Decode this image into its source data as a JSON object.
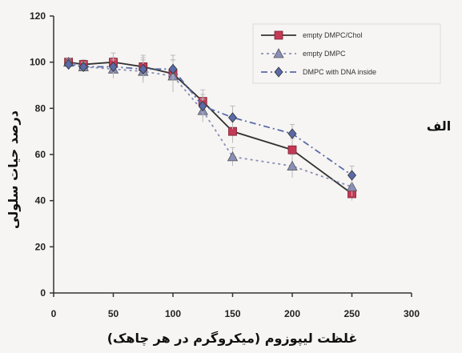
{
  "panel_label": "الف",
  "chart_data": {
    "type": "line",
    "xlabel": "غلظت لیپوزوم (میکروگرم در هر چاهک)",
    "ylabel": "درصد حیات سلولی",
    "xlim": [
      0,
      300
    ],
    "ylim": [
      0,
      120
    ],
    "xticks": [
      0,
      50,
      100,
      150,
      200,
      250,
      300
    ],
    "yticks": [
      0,
      20,
      40,
      60,
      80,
      100,
      120
    ],
    "x": [
      12.5,
      25,
      50,
      75,
      100,
      125,
      150,
      200,
      250
    ],
    "legend_position": "top-right",
    "series": [
      {
        "name": "empty DMPC/Chol",
        "color": "#c43a55",
        "marker": "square",
        "line": "solid",
        "values": [
          100,
          99,
          100,
          98,
          95,
          83,
          70,
          62,
          43
        ],
        "errors": [
          1.5,
          2,
          4,
          5,
          6,
          5,
          5,
          5,
          3
        ]
      },
      {
        "name": "empty DMPC",
        "color": "#8a8fb8",
        "marker": "triangle",
        "line": "dotted",
        "values": [
          100,
          98,
          97,
          96,
          94,
          79,
          59,
          55,
          46
        ],
        "errors": [
          1.5,
          2,
          4,
          5,
          7,
          5,
          4,
          5,
          4
        ]
      },
      {
        "name": "DMPC with DNA inside",
        "color": "#5a6aa8",
        "marker": "diamond",
        "line": "dashdot",
        "values": [
          99,
          98,
          98,
          97,
          97,
          81,
          76,
          69,
          51
        ],
        "errors": [
          1.5,
          2,
          4,
          5,
          6,
          5,
          5,
          4,
          4
        ]
      }
    ]
  }
}
